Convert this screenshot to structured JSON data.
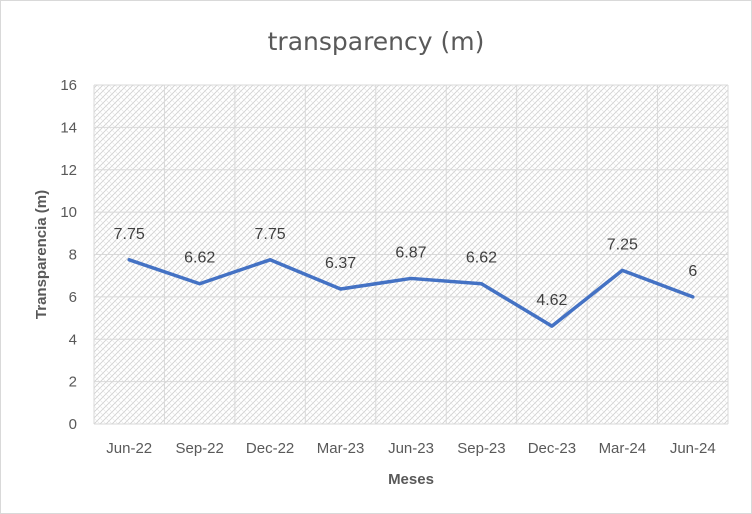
{
  "chart_data": {
    "type": "line",
    "title": "transparency (m)",
    "xlabel": "Meses",
    "ylabel": "Transparencia (m)",
    "categories": [
      "Jun-22",
      "Sep-22",
      "Dec-22",
      "Mar-23",
      "Jun-23",
      "Sep-23",
      "Dec-23",
      "Mar-24",
      "Jun-24"
    ],
    "series": [
      {
        "values": [
          7.75,
          6.62,
          7.75,
          6.37,
          6.87,
          6.62,
          4.62,
          7.25,
          6
        ],
        "labels": [
          "7.75",
          "6.62",
          "7.75",
          "6.37",
          "6.87",
          "6.62",
          "4.62",
          "7.25",
          "6"
        ],
        "color": "#4472c4"
      }
    ],
    "ylim": [
      0,
      16
    ],
    "yticks": [
      "0",
      "2",
      "4",
      "6",
      "8",
      "10",
      "12",
      "14",
      "16"
    ],
    "grid": true,
    "legend": "none",
    "colors": {
      "line": "#4472c4",
      "grid": "#d9d9d9",
      "text": "#595959",
      "hatch": "#d0d0d0"
    }
  }
}
